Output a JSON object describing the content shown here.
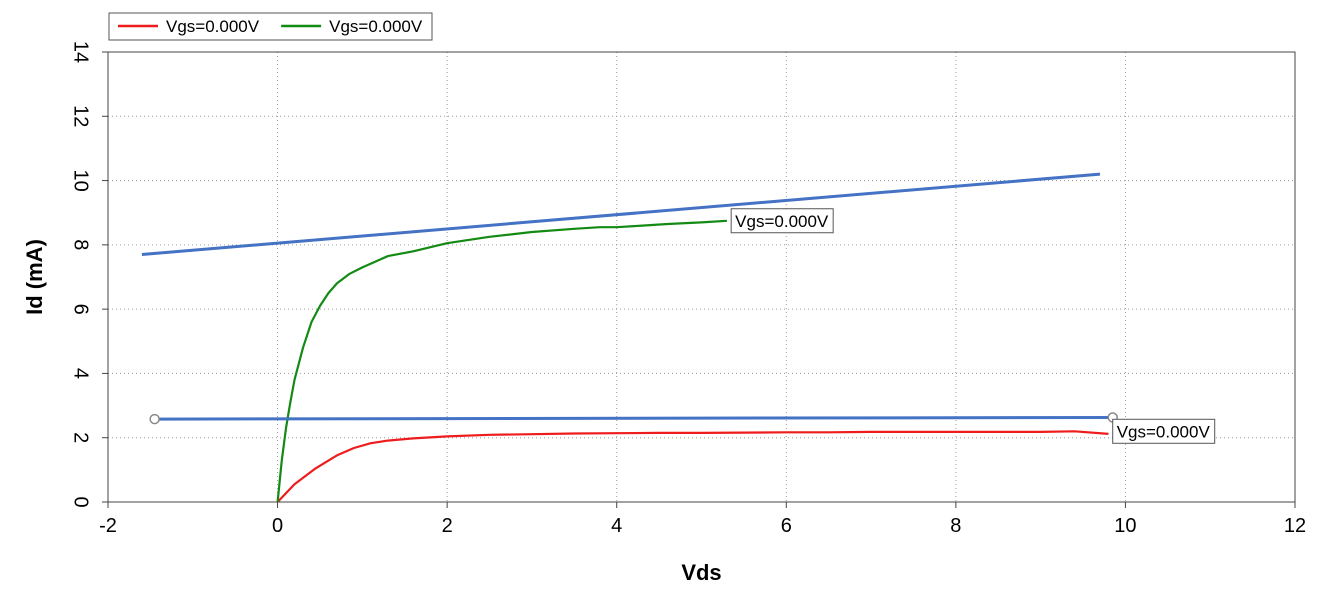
{
  "chart_data": {
    "type": "line",
    "title": "",
    "xlabel": "Vds",
    "ylabel": "Id (mA)",
    "xlim": [
      -2,
      12
    ],
    "ylim": [
      0,
      14
    ],
    "x_ticks": [
      "-2",
      "0",
      "2",
      "4",
      "6",
      "8",
      "10",
      "12"
    ],
    "y_ticks": [
      "0",
      "2",
      "4",
      "6",
      "8",
      "10",
      "12",
      "14"
    ],
    "grid": true,
    "legend_position": "top-left",
    "series": [
      {
        "name": "Vgs=0.000V",
        "color": "#ee1c1c",
        "x": [
          0,
          0.2,
          0.45,
          0.7,
          0.9,
          1.1,
          1.3,
          1.6,
          2.0,
          2.5,
          3.0,
          3.5,
          4.0,
          4.5,
          5.0,
          5.5,
          6.0,
          6.5,
          7.0,
          7.5,
          8.0,
          8.5,
          9.0,
          9.4,
          9.8
        ],
        "y": [
          0,
          0.55,
          1.05,
          1.45,
          1.68,
          1.83,
          1.91,
          1.98,
          2.04,
          2.09,
          2.11,
          2.13,
          2.14,
          2.15,
          2.15,
          2.16,
          2.17,
          2.17,
          2.18,
          2.18,
          2.18,
          2.18,
          2.18,
          2.2,
          2.12
        ]
      },
      {
        "name": "Vgs=0.000V",
        "color": "#138a13",
        "x": [
          0,
          0.05,
          0.1,
          0.15,
          0.2,
          0.3,
          0.4,
          0.5,
          0.6,
          0.7,
          0.85,
          1.0,
          1.3,
          1.6,
          2.0,
          2.5,
          3.0,
          3.5,
          3.8,
          4.0,
          4.3,
          4.6,
          5.0,
          5.3
        ],
        "y": [
          0,
          1.3,
          2.3,
          3.1,
          3.8,
          4.8,
          5.6,
          6.1,
          6.5,
          6.8,
          7.1,
          7.3,
          7.65,
          7.8,
          8.05,
          8.25,
          8.4,
          8.5,
          8.55,
          8.55,
          8.6,
          8.65,
          8.7,
          8.75
        ]
      }
    ],
    "fit_lines": [
      {
        "color": "#4472c4",
        "x": [
          -1.6,
          9.7
        ],
        "y": [
          7.7,
          10.2
        ]
      },
      {
        "color": "#4472c4",
        "x": [
          -1.45,
          9.85
        ],
        "y": [
          2.58,
          2.63
        ],
        "handles": true
      }
    ],
    "annotations": [
      {
        "text": "Vgs=0.000V",
        "x": 5.35,
        "y": 8.75
      },
      {
        "text": "Vgs=0.000V",
        "x": 9.85,
        "y": 2.2
      }
    ],
    "legend": [
      "Vgs=0.000V",
      "Vgs=0.000V"
    ]
  }
}
